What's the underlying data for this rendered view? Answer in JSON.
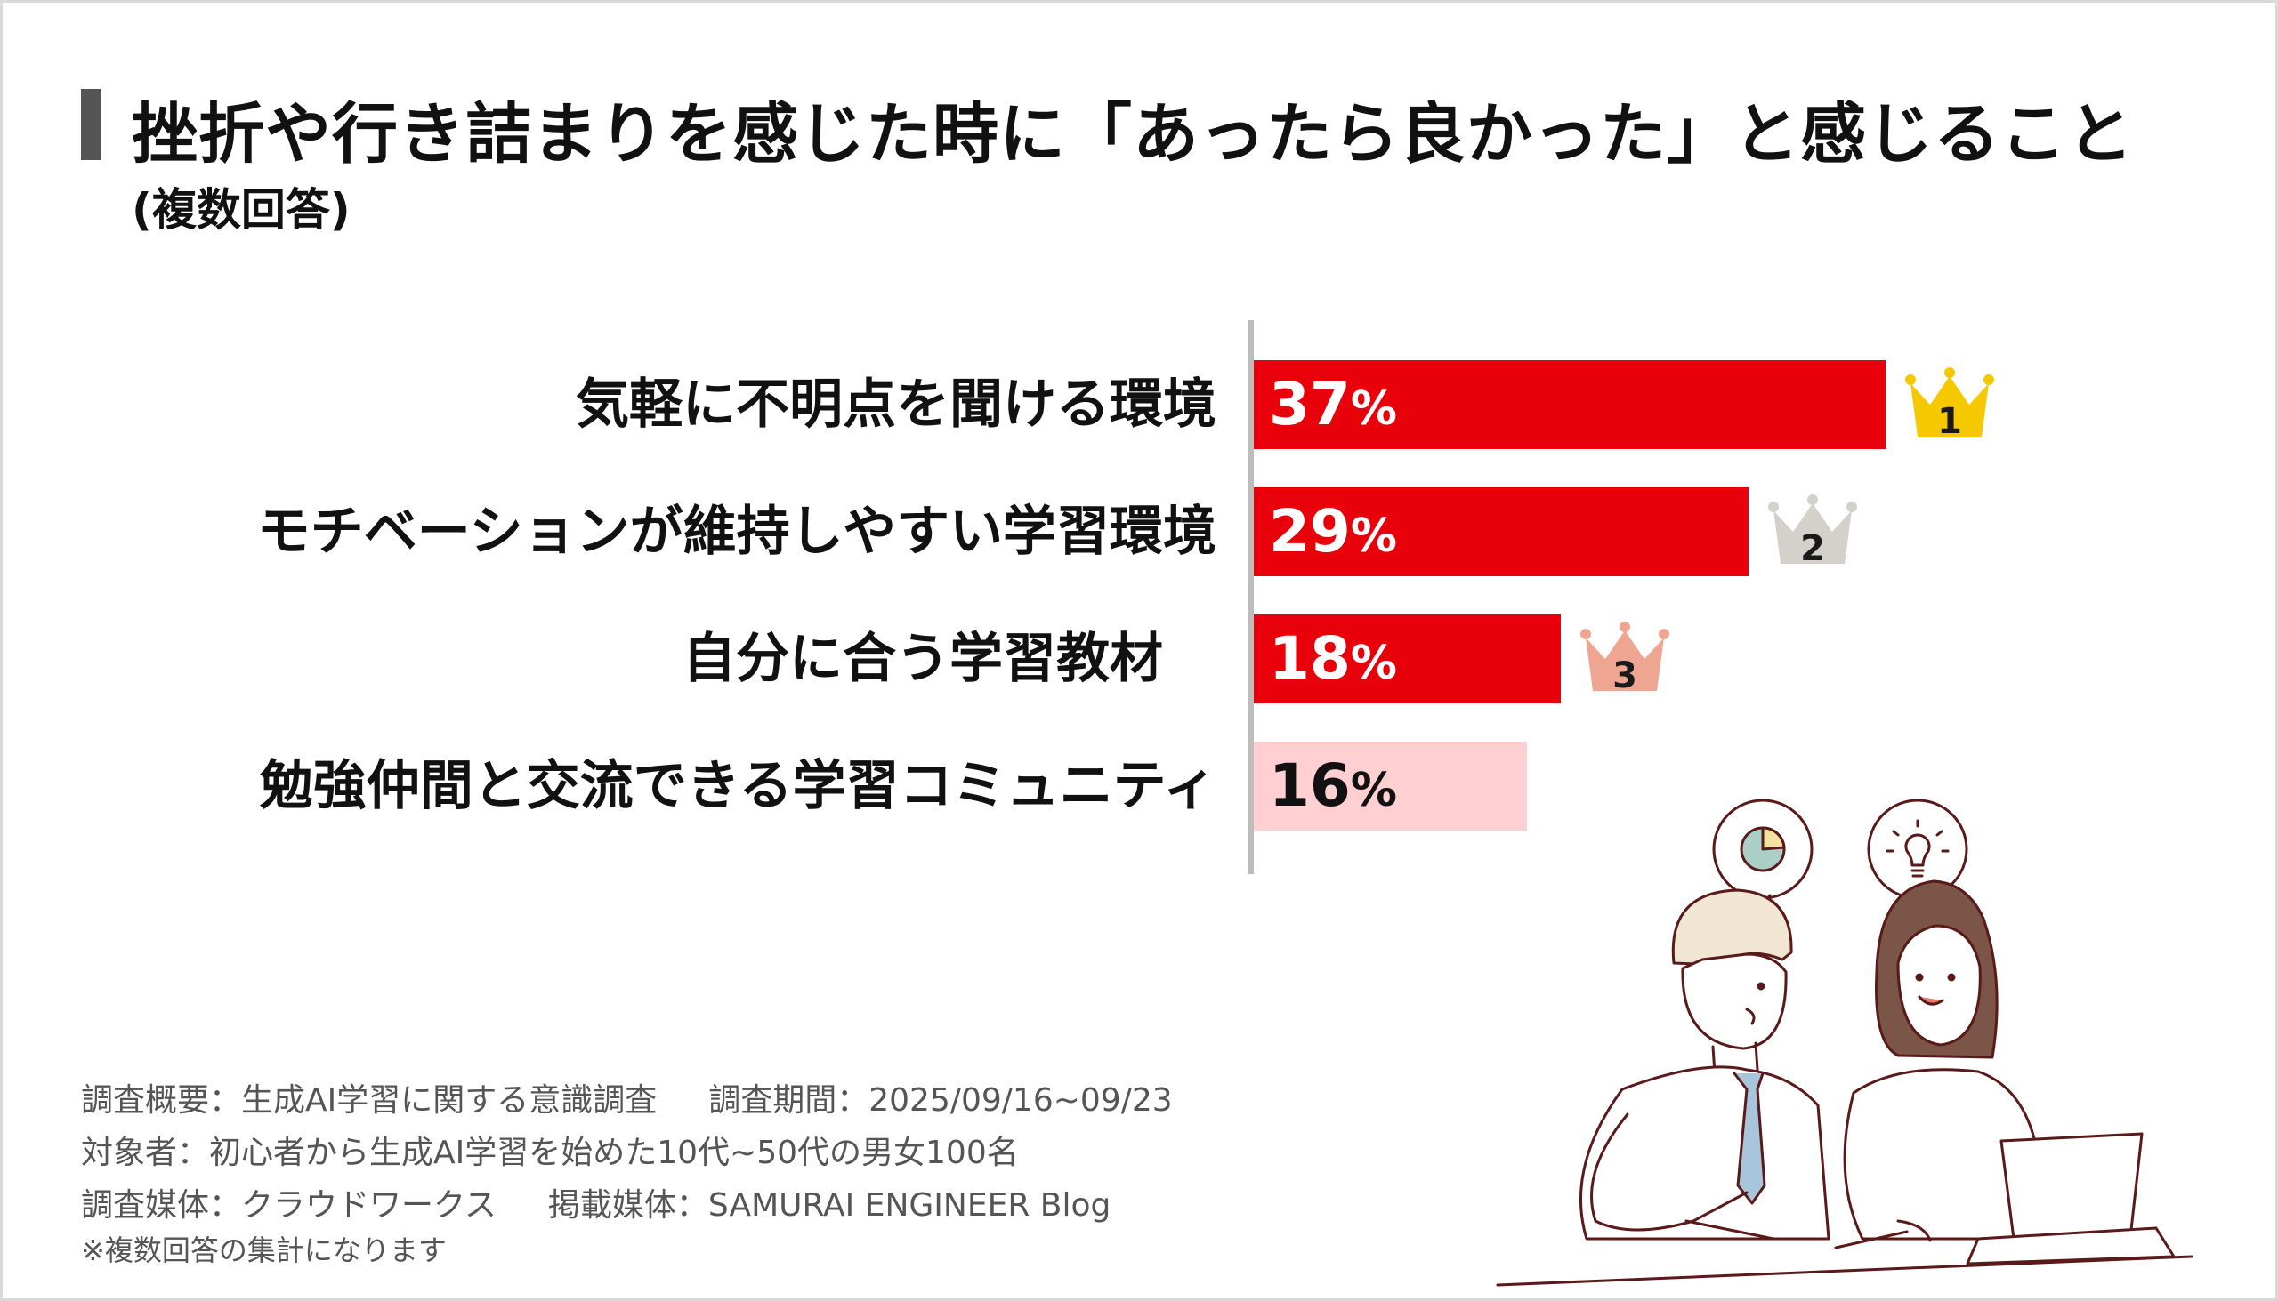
{
  "title": "挫折や行き詰まりを感じた時に「あったら良かった」と感じること",
  "subtitle": "(複数回答)",
  "chart_data": {
    "type": "bar",
    "orientation": "horizontal",
    "title": "挫折や行き詰まりを感じた時に「あったら良かった」と感じること",
    "subtitle": "(複数回答)",
    "categories": [
      "気軽に不明点を聞ける環境",
      "モチベーションが維持しやすい学習環境",
      "自分に合う学習教材",
      "勉強仲間と交流できる学習コミュニティ"
    ],
    "values": [
      37,
      29,
      18,
      16
    ],
    "value_labels": [
      "37",
      "29",
      "18",
      "16"
    ],
    "unit": "%",
    "ranks": [
      "1",
      "2",
      "3",
      ""
    ],
    "xlim": [
      0,
      40
    ],
    "grid": false,
    "legend": "none"
  },
  "colors": {
    "bar_primary": "#e8000b",
    "bar_secondary": "#ffcfd2",
    "label_on_primary": "#ffffff",
    "label_on_secondary": "#111111",
    "crown_gold": "#f5c800",
    "crown_silver": "#d4d1cb",
    "crown_bronze": "#eea692",
    "accent_title_bar": "#555555"
  },
  "icons": {
    "crowns": [
      "crown-gold-icon",
      "crown-silver-icon",
      "crown-bronze-icon"
    ],
    "bubbles": [
      "pie-chart-icon",
      "lightbulb-icon"
    ]
  },
  "footer": {
    "line1a": "調査概要：生成AI学習に関する意識調査",
    "line1b": "調査期間：2025/09/16~09/23",
    "line2": "対象者：初心者から生成AI学習を始めた10代~50代の男女100名",
    "line3a": "調査媒体：クラウドワークス",
    "line3b": "掲載媒体：SAMURAI ENGINEER Blog",
    "note": "※複数回答の集計になります"
  }
}
